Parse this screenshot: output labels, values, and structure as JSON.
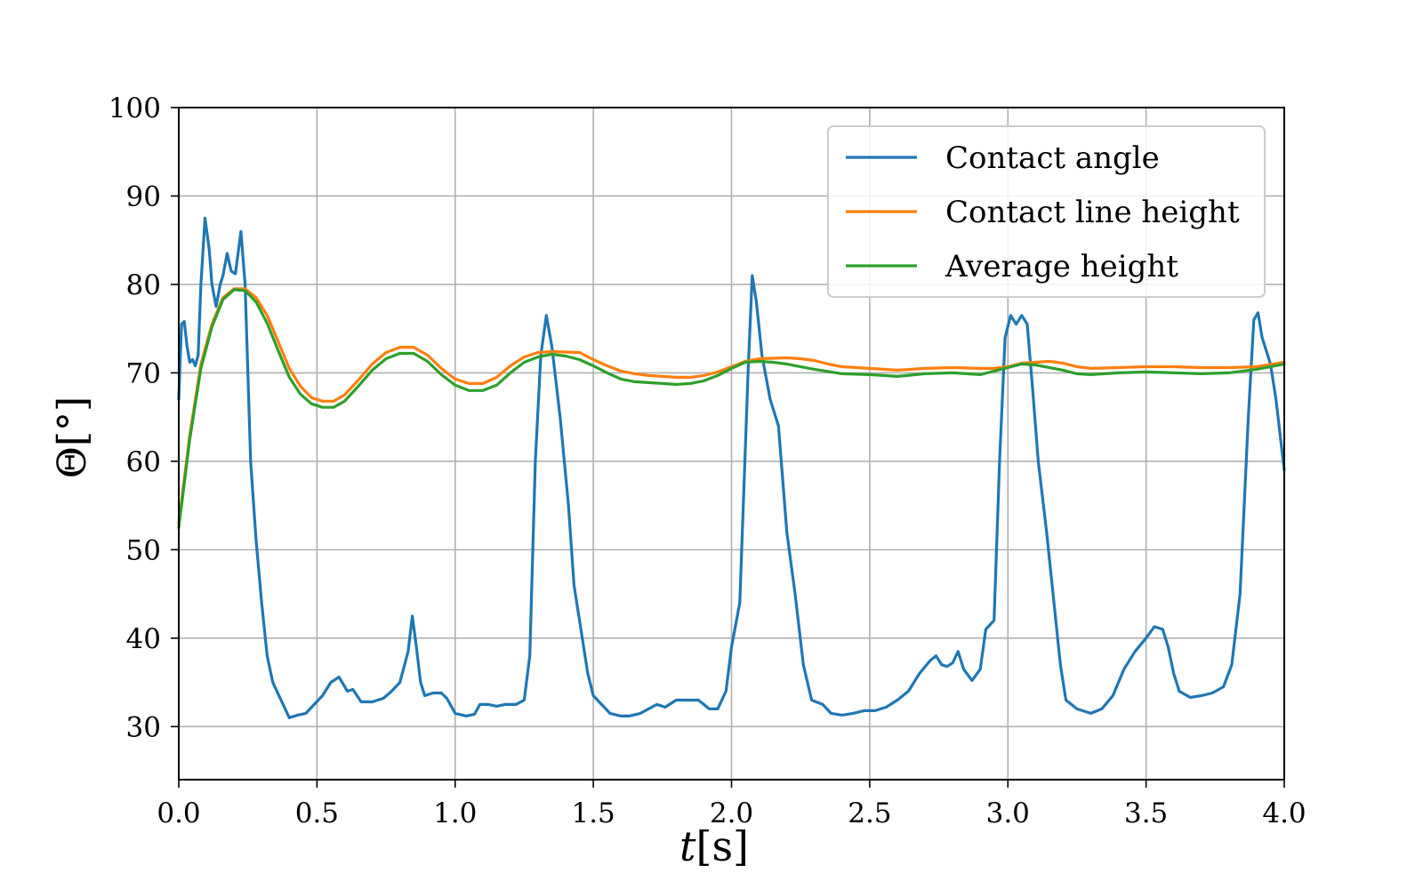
{
  "chart_data": {
    "type": "line",
    "xlabel": {
      "italic": "t",
      "unit": "[s]"
    },
    "ylabel": {
      "symbol": "Θ",
      "unit": "[°]"
    },
    "xlim": [
      0,
      4
    ],
    "ylim": [
      24,
      100
    ],
    "grid": true,
    "legend_position": "top-right",
    "x_ticks": [
      0.0,
      0.5,
      1.0,
      1.5,
      2.0,
      2.5,
      3.0,
      3.5,
      4.0
    ],
    "x_tick_labels": [
      "0.0",
      "0.5",
      "1.0",
      "1.5",
      "2.0",
      "2.5",
      "3.0",
      "3.5",
      "4.0"
    ],
    "y_ticks": [
      30,
      40,
      50,
      60,
      70,
      80,
      90,
      100
    ],
    "y_tick_labels": [
      "30",
      "40",
      "50",
      "60",
      "70",
      "80",
      "90",
      "100"
    ],
    "series": [
      {
        "name": "Contact angle",
        "color": "#1f77b4",
        "points": [
          [
            0.0,
            67
          ],
          [
            0.01,
            75.5
          ],
          [
            0.02,
            75.8
          ],
          [
            0.03,
            73
          ],
          [
            0.04,
            71.2
          ],
          [
            0.05,
            71.5
          ],
          [
            0.06,
            70.8
          ],
          [
            0.07,
            72
          ],
          [
            0.08,
            80
          ],
          [
            0.095,
            87.5
          ],
          [
            0.11,
            84
          ],
          [
            0.12,
            80
          ],
          [
            0.135,
            77.5
          ],
          [
            0.15,
            80
          ],
          [
            0.16,
            81
          ],
          [
            0.175,
            83.5
          ],
          [
            0.19,
            81.5
          ],
          [
            0.205,
            81.2
          ],
          [
            0.225,
            86
          ],
          [
            0.24,
            80
          ],
          [
            0.25,
            70
          ],
          [
            0.26,
            60
          ],
          [
            0.28,
            51
          ],
          [
            0.3,
            44
          ],
          [
            0.32,
            38
          ],
          [
            0.34,
            35
          ],
          [
            0.37,
            33
          ],
          [
            0.4,
            31
          ],
          [
            0.43,
            31.3
          ],
          [
            0.46,
            31.5
          ],
          [
            0.49,
            32.5
          ],
          [
            0.52,
            33.5
          ],
          [
            0.55,
            35
          ],
          [
            0.58,
            35.6
          ],
          [
            0.61,
            34
          ],
          [
            0.63,
            34.2
          ],
          [
            0.66,
            32.8
          ],
          [
            0.7,
            32.8
          ],
          [
            0.74,
            33.2
          ],
          [
            0.77,
            34
          ],
          [
            0.8,
            35
          ],
          [
            0.83,
            38.5
          ],
          [
            0.845,
            42.5
          ],
          [
            0.86,
            39
          ],
          [
            0.875,
            35
          ],
          [
            0.89,
            33.5
          ],
          [
            0.92,
            33.8
          ],
          [
            0.95,
            33.8
          ],
          [
            0.97,
            33.2
          ],
          [
            1.0,
            31.5
          ],
          [
            1.04,
            31.2
          ],
          [
            1.07,
            31.4
          ],
          [
            1.09,
            32.5
          ],
          [
            1.12,
            32.5
          ],
          [
            1.15,
            32.3
          ],
          [
            1.18,
            32.5
          ],
          [
            1.22,
            32.5
          ],
          [
            1.25,
            33
          ],
          [
            1.27,
            38
          ],
          [
            1.29,
            60
          ],
          [
            1.31,
            72
          ],
          [
            1.33,
            76.5
          ],
          [
            1.35,
            73
          ],
          [
            1.38,
            65
          ],
          [
            1.41,
            55
          ],
          [
            1.43,
            46
          ],
          [
            1.46,
            40
          ],
          [
            1.48,
            36
          ],
          [
            1.5,
            33.5
          ],
          [
            1.53,
            32.5
          ],
          [
            1.56,
            31.5
          ],
          [
            1.6,
            31.2
          ],
          [
            1.63,
            31.2
          ],
          [
            1.67,
            31.5
          ],
          [
            1.7,
            32
          ],
          [
            1.73,
            32.5
          ],
          [
            1.76,
            32.2
          ],
          [
            1.8,
            33
          ],
          [
            1.84,
            33
          ],
          [
            1.88,
            33
          ],
          [
            1.92,
            32
          ],
          [
            1.95,
            32
          ],
          [
            1.98,
            34
          ],
          [
            2.0,
            39
          ],
          [
            2.03,
            44
          ],
          [
            2.06,
            70
          ],
          [
            2.075,
            81
          ],
          [
            2.09,
            78
          ],
          [
            2.11,
            72
          ],
          [
            2.14,
            67
          ],
          [
            2.17,
            64
          ],
          [
            2.2,
            52
          ],
          [
            2.23,
            45
          ],
          [
            2.26,
            37
          ],
          [
            2.29,
            33
          ],
          [
            2.33,
            32.5
          ],
          [
            2.36,
            31.5
          ],
          [
            2.4,
            31.3
          ],
          [
            2.44,
            31.5
          ],
          [
            2.48,
            31.8
          ],
          [
            2.52,
            31.8
          ],
          [
            2.56,
            32.2
          ],
          [
            2.6,
            33
          ],
          [
            2.64,
            34
          ],
          [
            2.68,
            36
          ],
          [
            2.72,
            37.5
          ],
          [
            2.74,
            38
          ],
          [
            2.76,
            37
          ],
          [
            2.78,
            36.8
          ],
          [
            2.8,
            37.2
          ],
          [
            2.82,
            38.5
          ],
          [
            2.84,
            36.5
          ],
          [
            2.87,
            35.2
          ],
          [
            2.9,
            36.5
          ],
          [
            2.92,
            41
          ],
          [
            2.95,
            42
          ],
          [
            2.97,
            60
          ],
          [
            2.99,
            74
          ],
          [
            3.01,
            76.5
          ],
          [
            3.03,
            75.5
          ],
          [
            3.05,
            76.5
          ],
          [
            3.07,
            75.5
          ],
          [
            3.09,
            68
          ],
          [
            3.11,
            60
          ],
          [
            3.14,
            52
          ],
          [
            3.17,
            43
          ],
          [
            3.19,
            37
          ],
          [
            3.21,
            33
          ],
          [
            3.25,
            32
          ],
          [
            3.3,
            31.5
          ],
          [
            3.34,
            32
          ],
          [
            3.38,
            33.5
          ],
          [
            3.42,
            36.5
          ],
          [
            3.46,
            38.5
          ],
          [
            3.5,
            40
          ],
          [
            3.53,
            41.3
          ],
          [
            3.56,
            41
          ],
          [
            3.58,
            39
          ],
          [
            3.6,
            36
          ],
          [
            3.62,
            34
          ],
          [
            3.66,
            33.3
          ],
          [
            3.7,
            33.5
          ],
          [
            3.74,
            33.8
          ],
          [
            3.78,
            34.5
          ],
          [
            3.81,
            37
          ],
          [
            3.84,
            45
          ],
          [
            3.87,
            65
          ],
          [
            3.89,
            76
          ],
          [
            3.905,
            76.8
          ],
          [
            3.92,
            74
          ],
          [
            3.95,
            71
          ],
          [
            3.97,
            67
          ],
          [
            4.0,
            59
          ]
        ]
      },
      {
        "name": "Contact line height",
        "color": "#ff7f0e",
        "points": [
          [
            0.0,
            53
          ],
          [
            0.04,
            63
          ],
          [
            0.08,
            71
          ],
          [
            0.12,
            75.5
          ],
          [
            0.16,
            78.5
          ],
          [
            0.2,
            79.5
          ],
          [
            0.24,
            79.5
          ],
          [
            0.28,
            78.5
          ],
          [
            0.32,
            76.5
          ],
          [
            0.36,
            73.5
          ],
          [
            0.4,
            70.5
          ],
          [
            0.44,
            68.5
          ],
          [
            0.48,
            67.2
          ],
          [
            0.52,
            66.8
          ],
          [
            0.56,
            66.8
          ],
          [
            0.6,
            67.5
          ],
          [
            0.65,
            69.2
          ],
          [
            0.7,
            71
          ],
          [
            0.75,
            72.3
          ],
          [
            0.8,
            72.9
          ],
          [
            0.85,
            72.9
          ],
          [
            0.9,
            72
          ],
          [
            0.95,
            70.5
          ],
          [
            1.0,
            69.3
          ],
          [
            1.05,
            68.8
          ],
          [
            1.1,
            68.8
          ],
          [
            1.15,
            69.5
          ],
          [
            1.2,
            70.8
          ],
          [
            1.25,
            71.8
          ],
          [
            1.3,
            72.3
          ],
          [
            1.35,
            72.4
          ],
          [
            1.45,
            72.3
          ],
          [
            1.5,
            71.5
          ],
          [
            1.55,
            70.8
          ],
          [
            1.6,
            70.2
          ],
          [
            1.65,
            69.9
          ],
          [
            1.7,
            69.7
          ],
          [
            1.75,
            69.6
          ],
          [
            1.8,
            69.5
          ],
          [
            1.85,
            69.5
          ],
          [
            1.9,
            69.7
          ],
          [
            1.95,
            70.1
          ],
          [
            2.0,
            70.7
          ],
          [
            2.05,
            71.3
          ],
          [
            2.1,
            71.6
          ],
          [
            2.2,
            71.7
          ],
          [
            2.25,
            71.6
          ],
          [
            2.3,
            71.4
          ],
          [
            2.35,
            71
          ],
          [
            2.4,
            70.7
          ],
          [
            2.5,
            70.5
          ],
          [
            2.6,
            70.3
          ],
          [
            2.7,
            70.5
          ],
          [
            2.8,
            70.6
          ],
          [
            2.9,
            70.5
          ],
          [
            2.95,
            70.5
          ],
          [
            3.0,
            70.7
          ],
          [
            3.05,
            71.1
          ],
          [
            3.1,
            71.2
          ],
          [
            3.15,
            71.3
          ],
          [
            3.2,
            71.1
          ],
          [
            3.25,
            70.7
          ],
          [
            3.3,
            70.5
          ],
          [
            3.4,
            70.6
          ],
          [
            3.5,
            70.7
          ],
          [
            3.6,
            70.7
          ],
          [
            3.7,
            70.6
          ],
          [
            3.8,
            70.6
          ],
          [
            3.9,
            70.7
          ],
          [
            4.0,
            71.2
          ]
        ]
      },
      {
        "name": "Average height",
        "color": "#2ca02c",
        "points": [
          [
            0.0,
            52.5
          ],
          [
            0.04,
            62.5
          ],
          [
            0.08,
            70.5
          ],
          [
            0.12,
            75.2
          ],
          [
            0.16,
            78.3
          ],
          [
            0.2,
            79.4
          ],
          [
            0.24,
            79.3
          ],
          [
            0.28,
            78
          ],
          [
            0.32,
            75.6
          ],
          [
            0.36,
            72.5
          ],
          [
            0.4,
            69.5
          ],
          [
            0.44,
            67.6
          ],
          [
            0.48,
            66.5
          ],
          [
            0.52,
            66.1
          ],
          [
            0.56,
            66.1
          ],
          [
            0.6,
            66.8
          ],
          [
            0.65,
            68.5
          ],
          [
            0.7,
            70.3
          ],
          [
            0.75,
            71.6
          ],
          [
            0.8,
            72.2
          ],
          [
            0.85,
            72.2
          ],
          [
            0.9,
            71.3
          ],
          [
            0.95,
            69.8
          ],
          [
            1.0,
            68.6
          ],
          [
            1.05,
            68
          ],
          [
            1.1,
            68
          ],
          [
            1.15,
            68.6
          ],
          [
            1.2,
            70
          ],
          [
            1.25,
            71.2
          ],
          [
            1.3,
            71.8
          ],
          [
            1.35,
            72.1
          ],
          [
            1.4,
            71.9
          ],
          [
            1.45,
            71.5
          ],
          [
            1.5,
            70.8
          ],
          [
            1.55,
            70
          ],
          [
            1.6,
            69.3
          ],
          [
            1.65,
            69
          ],
          [
            1.7,
            68.9
          ],
          [
            1.75,
            68.8
          ],
          [
            1.8,
            68.7
          ],
          [
            1.85,
            68.8
          ],
          [
            1.9,
            69.1
          ],
          [
            1.95,
            69.7
          ],
          [
            2.0,
            70.5
          ],
          [
            2.05,
            71.2
          ],
          [
            2.1,
            71.3
          ],
          [
            2.15,
            71.2
          ],
          [
            2.2,
            71
          ],
          [
            2.3,
            70.4
          ],
          [
            2.4,
            69.9
          ],
          [
            2.5,
            69.8
          ],
          [
            2.6,
            69.6
          ],
          [
            2.7,
            69.9
          ],
          [
            2.8,
            70
          ],
          [
            2.9,
            69.8
          ],
          [
            3.0,
            70.6
          ],
          [
            3.05,
            71
          ],
          [
            3.1,
            70.9
          ],
          [
            3.2,
            70.3
          ],
          [
            3.25,
            69.9
          ],
          [
            3.3,
            69.8
          ],
          [
            3.4,
            70
          ],
          [
            3.5,
            70.1
          ],
          [
            3.6,
            70
          ],
          [
            3.7,
            69.9
          ],
          [
            3.8,
            70
          ],
          [
            3.9,
            70.4
          ],
          [
            4.0,
            71
          ]
        ]
      }
    ]
  }
}
